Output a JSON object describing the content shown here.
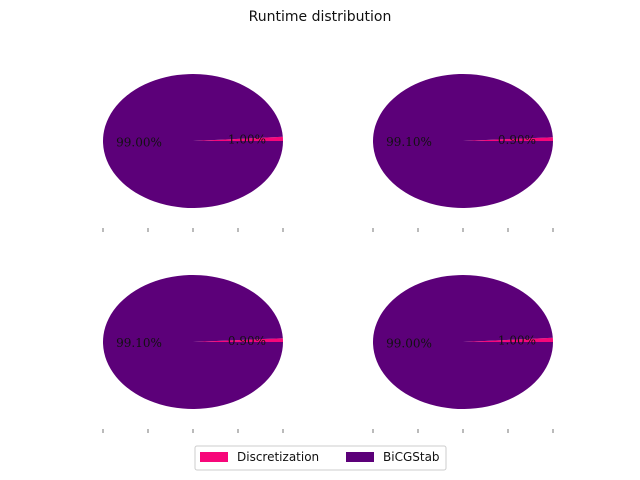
{
  "title": "Runtime distribution",
  "colors": {
    "Discretization": "#f7077a",
    "BiCGStab": "#5c0079"
  },
  "chart_data": [
    {
      "type": "pie",
      "labels": [
        "Discretization",
        "BiCGStab"
      ],
      "values": [
        1.0,
        99.0
      ],
      "value_labels": [
        "1.00%",
        "99.00%"
      ]
    },
    {
      "type": "pie",
      "labels": [
        "Discretization",
        "BiCGStab"
      ],
      "values": [
        0.9,
        99.1
      ],
      "value_labels": [
        "0.90%",
        "99.10%"
      ]
    },
    {
      "type": "pie",
      "labels": [
        "Discretization",
        "BiCGStab"
      ],
      "values": [
        0.9,
        99.1
      ],
      "value_labels": [
        "0.90%",
        "99.10%"
      ]
    },
    {
      "type": "pie",
      "labels": [
        "Discretization",
        "BiCGStab"
      ],
      "values": [
        1.0,
        99.0
      ],
      "value_labels": [
        "1.00%",
        "99.00%"
      ]
    }
  ],
  "legend": {
    "placement": "bottom-center",
    "entries": [
      "Discretization",
      "BiCGStab"
    ]
  }
}
